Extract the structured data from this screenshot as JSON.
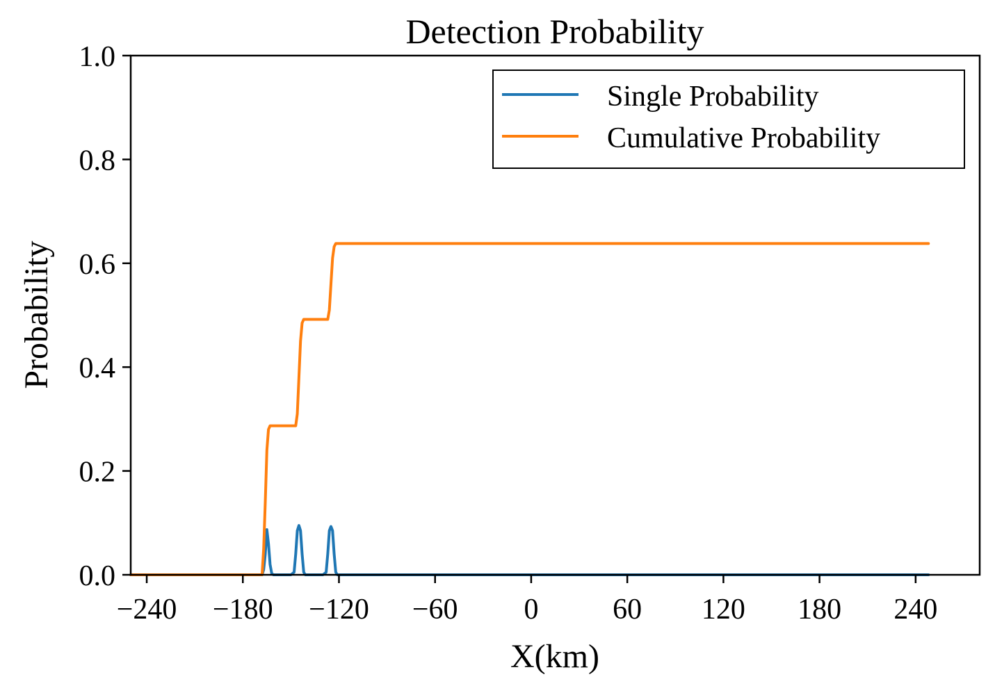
{
  "chart_data": {
    "type": "line",
    "title": "Detection Probability",
    "xlabel": "X(km)",
    "ylabel": "Probability",
    "xlim": [
      -250,
      280
    ],
    "ylim": [
      0,
      1.0
    ],
    "grid": false,
    "legend_position": "top-right",
    "x_ticks": [
      -240,
      -180,
      -120,
      -60,
      0,
      60,
      120,
      180,
      240
    ],
    "x_tick_labels": [
      "−240",
      "−180",
      "−120",
      "−60",
      "0",
      "60",
      "120",
      "180",
      "240"
    ],
    "y_ticks": [
      0.0,
      0.2,
      0.4,
      0.6,
      0.8,
      1.0
    ],
    "y_tick_labels": [
      "0.0",
      "0.2",
      "0.4",
      "0.6",
      "0.8",
      "1.0"
    ],
    "series": [
      {
        "name": "Single Probability",
        "color": "#1f77b4",
        "x": [
          -250,
          -168,
          -167,
          -166,
          -165,
          -164,
          -163,
          -162,
          -161,
          -150,
          -148,
          -147,
          -146,
          -145,
          -144,
          -143,
          -142,
          -141,
          -130,
          -128,
          -127,
          -126,
          -125,
          -124,
          -123,
          -122,
          -121,
          248
        ],
        "y": [
          0,
          0,
          0.01,
          0.04,
          0.087,
          0.06,
          0.02,
          0.003,
          0,
          0,
          0.005,
          0.04,
          0.085,
          0.095,
          0.085,
          0.04,
          0.005,
          0,
          0,
          0.005,
          0.04,
          0.085,
          0.093,
          0.085,
          0.04,
          0.005,
          0,
          0
        ]
      },
      {
        "name": "Cumulative Probability",
        "color": "#ff7f0e",
        "x": [
          -250,
          -168,
          -167,
          -166,
          -165,
          -164,
          -163,
          -162,
          -161,
          -147,
          -146,
          -145,
          -144,
          -143,
          -142,
          -141,
          -127,
          -126,
          -125,
          -124,
          -123,
          -122,
          -121,
          248
        ],
        "y": [
          0,
          0,
          0.05,
          0.14,
          0.24,
          0.28,
          0.287,
          0.287,
          0.287,
          0.287,
          0.31,
          0.38,
          0.45,
          0.485,
          0.492,
          0.492,
          0.492,
          0.51,
          0.56,
          0.61,
          0.632,
          0.638,
          0.638,
          0.638
        ]
      }
    ]
  }
}
